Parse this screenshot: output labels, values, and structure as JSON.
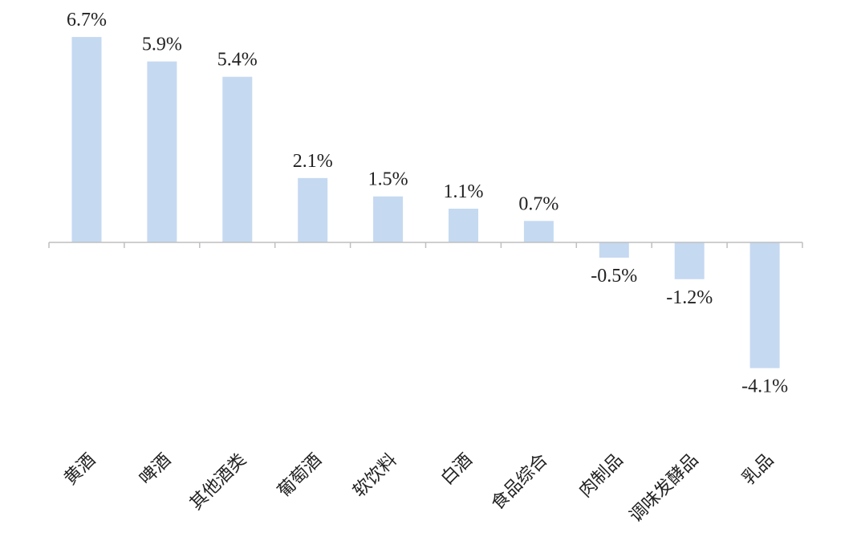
{
  "chart_data": {
    "type": "bar",
    "categories": [
      "黄酒",
      "啤酒",
      "其他酒类",
      "葡萄酒",
      "软饮料",
      "白酒",
      "食品综合",
      "肉制品",
      "调味发酵品",
      "乳品"
    ],
    "values": [
      6.7,
      5.9,
      5.4,
      2.1,
      1.5,
      1.1,
      0.7,
      -0.5,
      -1.2,
      -4.1
    ],
    "value_labels": [
      "6.7%",
      "5.9%",
      "5.4%",
      "2.1%",
      "1.5%",
      "1.1%",
      "0.7%",
      "-0.5%",
      "-1.2%",
      "-4.1%"
    ],
    "ylim": [
      -6,
      7
    ],
    "grid": false,
    "legend": "none",
    "bar_color": "#c5d9f1",
    "axis_color": "#bfbfbf"
  }
}
